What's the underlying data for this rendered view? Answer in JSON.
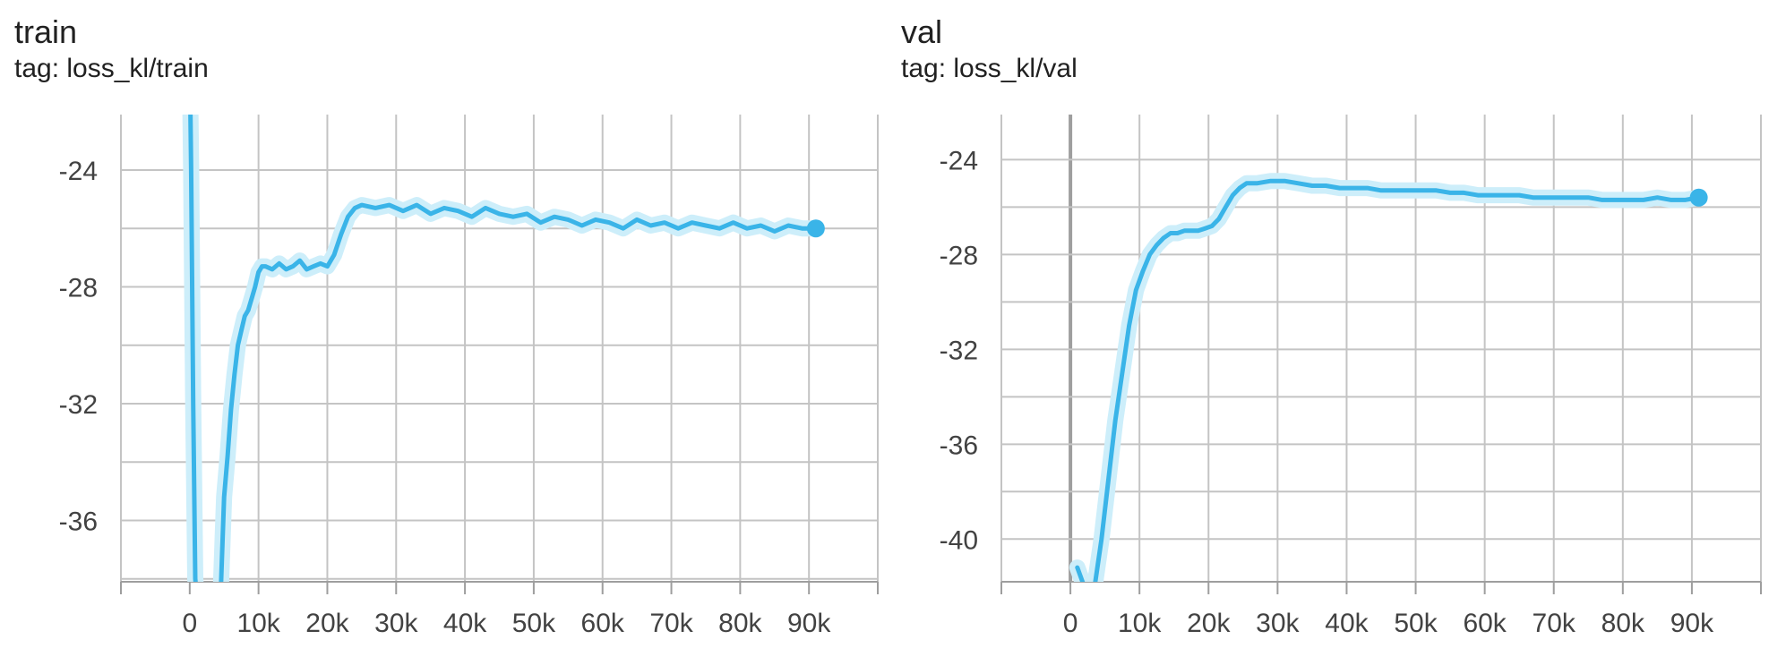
{
  "colors": {
    "series": "#3ab4e8",
    "series_raw": "#cdeefa",
    "grid": "#c4c4c4",
    "zero_line": "#9e9e9e",
    "axis": "#9e9e9e"
  },
  "charts": [
    {
      "title": "train",
      "tag": "tag: loss_kl/train"
    },
    {
      "title": "val",
      "tag": "tag: loss_kl/val"
    }
  ],
  "chart_data": [
    {
      "type": "line",
      "title": "train",
      "subtitle": "tag: loss_kl/train",
      "xlabel": "",
      "ylabel": "",
      "xlim": [
        -10000,
        100000
      ],
      "ylim": [
        -38.1,
        -22.1
      ],
      "x_ticks": [
        0,
        10000,
        20000,
        30000,
        40000,
        50000,
        60000,
        70000,
        80000,
        90000
      ],
      "x_tick_labels": [
        "0",
        "10k",
        "20k",
        "30k",
        "40k",
        "50k",
        "60k",
        "70k",
        "80k",
        "90k"
      ],
      "y_ticks": [
        -36,
        -32,
        -28,
        -24
      ],
      "y_tick_labels": [
        "-36",
        "-32",
        "-28",
        "-24"
      ],
      "grid": true,
      "legend": "none",
      "series": [
        {
          "x": [
            0,
            200,
            500,
            800,
            1000,
            4500,
            5000,
            5500,
            6000,
            6500,
            7000,
            7500,
            8000,
            8500,
            9000,
            9500,
            10000,
            10500,
            11000,
            12000,
            13000,
            14000,
            15000,
            16000,
            17000,
            18000,
            19000,
            20000,
            21000,
            22000,
            23000,
            24000,
            25000,
            27000,
            29000,
            31000,
            33000,
            35000,
            37000,
            39000,
            41000,
            43000,
            45000,
            47000,
            49000,
            51000,
            53000,
            55000,
            57000,
            59000,
            61000,
            63000,
            65000,
            67000,
            69000,
            71000,
            73000,
            75000,
            77000,
            79000,
            81000,
            83000,
            85000,
            87000,
            89000,
            91000
          ],
          "y": [
            -20,
            -24,
            -32,
            -38,
            -38.5,
            -38.5,
            -35.2,
            -33.8,
            -32.2,
            -31.0,
            -30.0,
            -29.5,
            -29.0,
            -28.8,
            -28.4,
            -28.0,
            -27.5,
            -27.3,
            -27.3,
            -27.4,
            -27.2,
            -27.4,
            -27.3,
            -27.1,
            -27.4,
            -27.3,
            -27.2,
            -27.3,
            -26.9,
            -26.2,
            -25.6,
            -25.3,
            -25.2,
            -25.3,
            -25.2,
            -25.4,
            -25.2,
            -25.5,
            -25.3,
            -25.4,
            -25.6,
            -25.3,
            -25.5,
            -25.6,
            -25.5,
            -25.8,
            -25.6,
            -25.7,
            -25.9,
            -25.7,
            -25.8,
            -26.0,
            -25.7,
            -25.9,
            -25.8,
            -26.0,
            -25.8,
            -25.9,
            -26.0,
            -25.8,
            -26.0,
            -25.9,
            -26.1,
            -25.9,
            -26.0,
            -26.0
          ]
        }
      ]
    },
    {
      "type": "line",
      "title": "val",
      "subtitle": "tag: loss_kl/val",
      "xlabel": "",
      "ylabel": "",
      "xlim": [
        -10000,
        100000
      ],
      "ylim": [
        -41.8,
        -22.1
      ],
      "x_ticks": [
        0,
        10000,
        20000,
        30000,
        40000,
        50000,
        60000,
        70000,
        80000,
        90000
      ],
      "x_tick_labels": [
        "0",
        "10k",
        "20k",
        "30k",
        "40k",
        "50k",
        "60k",
        "70k",
        "80k",
        "90k"
      ],
      "y_ticks": [
        -40,
        -36,
        -32,
        -28,
        -24
      ],
      "y_tick_labels": [
        "-40",
        "-36",
        "-32",
        "-28",
        "-24"
      ],
      "grid": true,
      "legend": "none",
      "series": [
        {
          "x": [
            1000,
            2000,
            3500,
            4500,
            5500,
            6500,
            7500,
            8500,
            9500,
            10500,
            11500,
            12500,
            13500,
            14500,
            15500,
            16500,
            17500,
            18500,
            19500,
            20500,
            21500,
            22500,
            23500,
            24500,
            25500,
            27000,
            29000,
            31000,
            33000,
            35000,
            37000,
            39000,
            41000,
            43000,
            45000,
            47000,
            49000,
            51000,
            53000,
            55000,
            57000,
            59000,
            61000,
            63000,
            65000,
            67000,
            69000,
            71000,
            73000,
            75000,
            77000,
            79000,
            81000,
            83000,
            85000,
            87000,
            89000,
            91000
          ],
          "y": [
            -41.2,
            -42.0,
            -42.0,
            -40.0,
            -37.5,
            -35.0,
            -33.0,
            -31.0,
            -29.5,
            -28.7,
            -28.0,
            -27.6,
            -27.3,
            -27.1,
            -27.1,
            -27.0,
            -27.0,
            -27.0,
            -26.9,
            -26.8,
            -26.5,
            -26.0,
            -25.5,
            -25.2,
            -25.0,
            -25.0,
            -24.9,
            -24.9,
            -25.0,
            -25.1,
            -25.1,
            -25.2,
            -25.2,
            -25.2,
            -25.3,
            -25.3,
            -25.3,
            -25.3,
            -25.3,
            -25.4,
            -25.4,
            -25.5,
            -25.5,
            -25.5,
            -25.5,
            -25.6,
            -25.6,
            -25.6,
            -25.6,
            -25.6,
            -25.7,
            -25.7,
            -25.7,
            -25.7,
            -25.6,
            -25.7,
            -25.7,
            -25.6
          ]
        }
      ]
    }
  ]
}
